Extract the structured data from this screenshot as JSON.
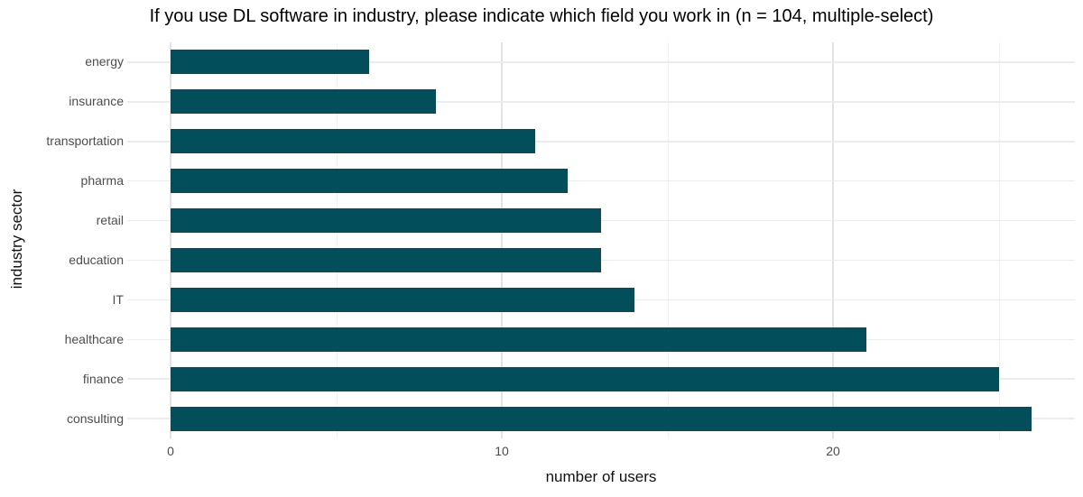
{
  "chart_data": {
    "type": "bar",
    "orientation": "horizontal",
    "title": "If you use DL software in industry, please indicate which field you work in (n = 104, multiple-select)",
    "xlabel": "number of users",
    "ylabel": "industry sector",
    "categories": [
      "energy",
      "insurance",
      "transportation",
      "pharma",
      "retail",
      "education",
      "IT",
      "healthcare",
      "finance",
      "consulting"
    ],
    "values": [
      6,
      8,
      11,
      12,
      13,
      13,
      14,
      21,
      25,
      26
    ],
    "sample_note": "n = 104, multiple-select",
    "x_major_ticks": [
      0,
      10,
      20
    ],
    "x_minor_ticks": [
      5,
      15,
      25
    ],
    "xlim": [
      -1.3,
      27.3
    ],
    "grid": "major vertical at 0/10/20, minor at 5/15/25, horizontal major at each category",
    "legend_position": "none",
    "colors": {
      "bar": "#024E5A",
      "grid_major": "#E3E3E3",
      "grid_minor": "#F1F1F1",
      "tick_label": "#4D4D4D",
      "title": "#000000",
      "axis_title": "#111111",
      "background": "#FFFFFF"
    }
  }
}
